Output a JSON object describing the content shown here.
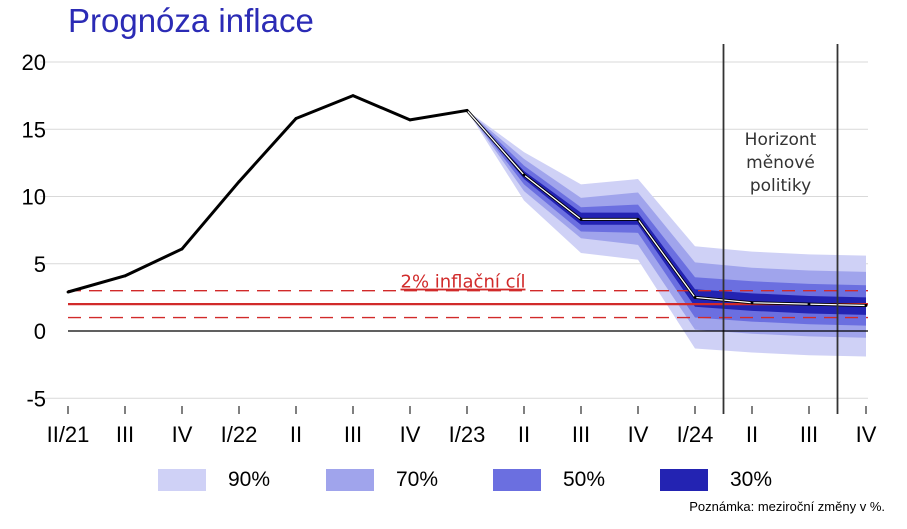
{
  "title": "Prognóza inflace",
  "note": "Poznámka: meziroční změny v %.",
  "colors": {
    "title": "#2b2bb5",
    "band90": "#cfd1f6",
    "band70": "#a0a4ec",
    "band50": "#6b6fe0",
    "band30": "#2323b2",
    "target": "#d12a2a",
    "line": "#000000",
    "horizon": "#333333"
  },
  "chart_data": {
    "type": "area",
    "title": "Prognóza inflace",
    "categories": [
      "II/21",
      "III",
      "IV",
      "I/22",
      "II",
      "III",
      "IV",
      "I/23",
      "II",
      "III",
      "IV",
      "I/24",
      "II",
      "III",
      "IV"
    ],
    "yticks": [
      -5,
      0,
      5,
      10,
      15,
      20
    ],
    "ylim": [
      -5,
      20
    ],
    "grid": true,
    "series": [
      {
        "name": "",
        "values": [
          2.9,
          4.1,
          6.1,
          11.1,
          15.8,
          17.5,
          15.7,
          16.4,
          11.6,
          8.3,
          8.3,
          2.5,
          2.1,
          2.0,
          1.9
        ]
      }
    ],
    "bands": {
      "start_index": 7,
      "levels": [
        {
          "name": "90%",
          "lower": [
            16.4,
            9.7,
            5.8,
            5.3,
            -1.3,
            -1.6,
            -1.8,
            -1.9
          ],
          "upper": [
            16.4,
            13.3,
            10.9,
            11.3,
            6.3,
            5.9,
            5.7,
            5.6
          ]
        },
        {
          "name": "70%",
          "lower": [
            16.4,
            10.4,
            6.9,
            6.4,
            0.1,
            -0.2,
            -0.4,
            -0.5
          ],
          "upper": [
            16.4,
            12.8,
            9.9,
            10.3,
            5.1,
            4.7,
            4.5,
            4.4
          ]
        },
        {
          "name": "50%",
          "lower": [
            16.4,
            10.9,
            7.4,
            7.3,
            1.0,
            0.7,
            0.5,
            0.4
          ],
          "upper": [
            16.4,
            12.3,
            9.2,
            9.4,
            4.0,
            3.7,
            3.5,
            3.4
          ]
        },
        {
          "name": "30%",
          "lower": [
            16.4,
            11.3,
            7.9,
            7.9,
            1.8,
            1.5,
            1.3,
            1.2
          ],
          "upper": [
            16.4,
            11.9,
            8.8,
            8.8,
            3.1,
            2.8,
            2.6,
            2.5
          ]
        }
      ]
    },
    "target": {
      "label": "2% inflační cíl",
      "value": 2,
      "tolerance_lower": 1,
      "tolerance_upper": 3
    },
    "horizon": {
      "label_lines": [
        "Horizont",
        "měnové",
        "politiky"
      ],
      "from": 11.5,
      "to": 13.5
    },
    "legend": [
      "90%",
      "70%",
      "50%",
      "30%"
    ],
    "legend_position": "bottom"
  }
}
